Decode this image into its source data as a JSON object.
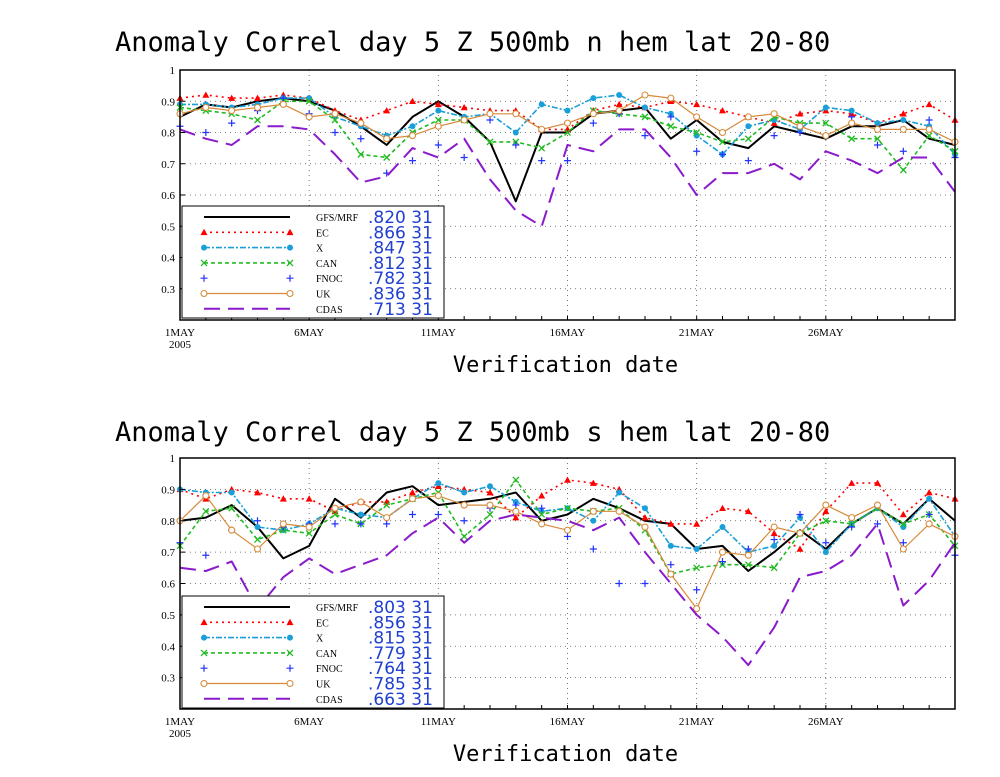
{
  "chart_data": [
    {
      "type": "line",
      "title": "Anomaly Correl   day 5   Z 500mb   n hem   lat 20-80",
      "xlabel": "Verification date",
      "year_label": "2005",
      "x_tick_labels": [
        "1MAY",
        "6MAY",
        "11MAY",
        "16MAY",
        "21MAY",
        "26MAY"
      ],
      "x_tick_days": [
        1,
        6,
        11,
        16,
        21,
        26
      ],
      "x": [
        1,
        2,
        3,
        4,
        5,
        6,
        7,
        8,
        9,
        10,
        11,
        12,
        13,
        14,
        15,
        16,
        17,
        18,
        19,
        20,
        21,
        22,
        23,
        24,
        25,
        26,
        27,
        28,
        29,
        30,
        31
      ],
      "xlim": [
        1,
        31
      ],
      "ylim": [
        0.2,
        1.0
      ],
      "y_ticks": [
        "1",
        "0.9",
        "0.8",
        "0.7",
        "0.6",
        "0.5",
        "0.4",
        "0.3"
      ],
      "y_tick_values": [
        1.0,
        0.9,
        0.8,
        0.7,
        0.6,
        0.5,
        0.4,
        0.3
      ],
      "grid": true,
      "legend_position": "bottom-left",
      "series": [
        {
          "name": "GFS/MRF",
          "stat": ".820  31",
          "color": "#000000",
          "dash": "",
          "width": 2,
          "marker": "none",
          "values": [
            0.85,
            0.89,
            0.88,
            0.9,
            0.91,
            0.9,
            0.87,
            0.82,
            0.76,
            0.85,
            0.9,
            0.85,
            0.77,
            0.58,
            0.8,
            0.8,
            0.86,
            0.87,
            0.88,
            0.78,
            0.84,
            0.77,
            0.75,
            0.82,
            0.8,
            0.78,
            0.82,
            0.82,
            0.84,
            0.78,
            0.76
          ]
        },
        {
          "name": "EC",
          "stat": ".866  31",
          "color": "#ff0000",
          "dash": "2,4",
          "width": 1.6,
          "marker": "triangle",
          "values": [
            0.91,
            0.92,
            0.91,
            0.91,
            0.92,
            0.91,
            0.87,
            0.84,
            0.87,
            0.9,
            0.89,
            0.88,
            0.87,
            0.87,
            0.81,
            0.81,
            0.87,
            0.89,
            0.88,
            0.9,
            0.89,
            0.87,
            0.85,
            0.83,
            0.86,
            0.87,
            0.86,
            0.83,
            0.86,
            0.89,
            0.84
          ]
        },
        {
          "name": "X",
          "stat": ".847  31",
          "color": "#1a9fd8",
          "dash": "6,2,2,2",
          "width": 1.6,
          "marker": "circle",
          "values": [
            0.89,
            0.89,
            0.88,
            0.89,
            0.91,
            0.91,
            0.85,
            0.82,
            0.79,
            0.82,
            0.87,
            0.85,
            0.86,
            0.8,
            0.89,
            0.87,
            0.91,
            0.92,
            0.88,
            0.86,
            0.79,
            0.73,
            0.82,
            0.84,
            0.81,
            0.88,
            0.87,
            0.83,
            0.84,
            0.82,
            0.73
          ]
        },
        {
          "name": "CAN",
          "stat": ".812  31",
          "color": "#22bb22",
          "dash": "4,3",
          "width": 1.6,
          "marker": "x",
          "values": [
            0.88,
            0.87,
            0.86,
            0.84,
            0.9,
            0.9,
            0.84,
            0.73,
            0.72,
            0.8,
            0.84,
            0.84,
            0.77,
            0.77,
            0.75,
            0.8,
            0.87,
            0.86,
            0.85,
            0.82,
            0.8,
            0.77,
            0.78,
            0.85,
            0.83,
            0.83,
            0.78,
            0.78,
            0.68,
            0.79,
            0.74
          ]
        },
        {
          "name": "FNOC",
          "stat": ".782  31",
          "color": "#2233ff",
          "dash": "",
          "width": 0,
          "marker": "plus",
          "values": [
            0.82,
            0.8,
            0.83,
            0.87,
            0.91,
            0.86,
            0.8,
            0.78,
            0.67,
            0.71,
            0.76,
            0.72,
            0.84,
            0.76,
            0.71,
            0.71,
            0.83,
            0.86,
            0.79,
            0.85,
            0.74,
            0.73,
            0.71,
            0.79,
            0.8,
            0.79,
            0.85,
            0.76,
            0.74,
            0.84,
            0.72
          ]
        },
        {
          "name": "UK",
          "stat": ".836  31",
          "color": "#d68a3a",
          "dash": "",
          "width": 1.2,
          "marker": "opencircle",
          "values": [
            0.86,
            0.88,
            0.87,
            0.88,
            0.89,
            0.85,
            0.86,
            0.83,
            0.78,
            0.79,
            0.82,
            0.84,
            0.86,
            0.86,
            0.81,
            0.83,
            0.86,
            0.87,
            0.92,
            0.91,
            0.85,
            0.8,
            0.85,
            0.86,
            0.82,
            0.79,
            0.83,
            0.81,
            0.81,
            0.81,
            0.77
          ]
        },
        {
          "name": "CDAS",
          "stat": ".713  31",
          "color": "#8a1acb",
          "dash": "16,8",
          "width": 2,
          "marker": "none",
          "values": [
            0.81,
            0.78,
            0.76,
            0.82,
            0.82,
            0.81,
            0.73,
            0.64,
            0.66,
            0.75,
            0.72,
            0.78,
            0.65,
            0.55,
            0.5,
            0.76,
            0.74,
            0.81,
            0.81,
            0.72,
            0.6,
            0.67,
            0.67,
            0.7,
            0.65,
            0.74,
            0.71,
            0.67,
            0.72,
            0.72,
            0.61
          ]
        }
      ]
    },
    {
      "type": "line",
      "title": "Anomaly Correl   day 5   Z 500mb   s hem   lat 20-80",
      "xlabel": "Verification date",
      "year_label": "2005",
      "x_tick_labels": [
        "1MAY",
        "6MAY",
        "11MAY",
        "16MAY",
        "21MAY",
        "26MAY"
      ],
      "x_tick_days": [
        1,
        6,
        11,
        16,
        21,
        26
      ],
      "x": [
        1,
        2,
        3,
        4,
        5,
        6,
        7,
        8,
        9,
        10,
        11,
        12,
        13,
        14,
        15,
        16,
        17,
        18,
        19,
        20,
        21,
        22,
        23,
        24,
        25,
        26,
        27,
        28,
        29,
        30,
        31
      ],
      "xlim": [
        1,
        31
      ],
      "ylim": [
        0.2,
        1.0
      ],
      "y_ticks": [
        "1",
        "0.9",
        "0.8",
        "0.7",
        "0.6",
        "0.5",
        "0.4",
        "0.3"
      ],
      "y_tick_values": [
        1.0,
        0.9,
        0.8,
        0.7,
        0.6,
        0.5,
        0.4,
        0.3
      ],
      "grid": true,
      "legend_position": "bottom-left",
      "series": [
        {
          "name": "GFS/MRF",
          "stat": ".803  31",
          "color": "#000000",
          "dash": "",
          "width": 2,
          "marker": "none",
          "values": [
            0.8,
            0.81,
            0.85,
            0.78,
            0.68,
            0.72,
            0.87,
            0.81,
            0.89,
            0.91,
            0.85,
            0.86,
            0.87,
            0.89,
            0.8,
            0.82,
            0.87,
            0.84,
            0.8,
            0.79,
            0.71,
            0.72,
            0.64,
            0.7,
            0.77,
            0.71,
            0.79,
            0.84,
            0.79,
            0.87,
            0.8
          ]
        },
        {
          "name": "EC",
          "stat": ".856  31",
          "color": "#ff0000",
          "dash": "2,4",
          "width": 1.6,
          "marker": "triangle",
          "values": [
            0.9,
            0.87,
            0.9,
            0.89,
            0.87,
            0.87,
            0.83,
            0.86,
            0.86,
            0.89,
            0.91,
            0.9,
            0.89,
            0.81,
            0.88,
            0.93,
            0.92,
            0.9,
            0.81,
            0.79,
            0.79,
            0.84,
            0.83,
            0.76,
            0.71,
            0.83,
            0.92,
            0.92,
            0.82,
            0.89,
            0.87
          ]
        },
        {
          "name": "X",
          "stat": ".815  31",
          "color": "#1a9fd8",
          "dash": "6,2,2,2",
          "width": 1.6,
          "marker": "circle",
          "values": [
            0.9,
            0.89,
            0.89,
            0.78,
            0.77,
            0.79,
            0.84,
            0.82,
            0.81,
            0.87,
            0.92,
            0.89,
            0.91,
            0.86,
            0.83,
            0.84,
            0.8,
            0.89,
            0.84,
            0.72,
            0.71,
            0.78,
            0.7,
            0.72,
            0.81,
            0.7,
            0.79,
            0.84,
            0.78,
            0.87,
            0.75
          ]
        },
        {
          "name": "CAN",
          "stat": ".779  31",
          "color": "#22bb22",
          "dash": "4,3",
          "width": 1.6,
          "marker": "x",
          "values": [
            0.72,
            0.83,
            0.84,
            0.74,
            0.77,
            0.76,
            0.82,
            0.79,
            0.85,
            0.87,
            0.89,
            0.75,
            0.82,
            0.93,
            0.82,
            0.84,
            0.83,
            0.84,
            0.77,
            0.63,
            0.65,
            0.66,
            0.66,
            0.65,
            0.76,
            0.8,
            0.79,
            0.84,
            0.79,
            0.82,
            0.72
          ]
        },
        {
          "name": "FNOC",
          "stat": ".764  31",
          "color": "#2233ff",
          "dash": "",
          "width": 0,
          "marker": "plus",
          "values": [
            0.73,
            0.69,
            0.77,
            0.8,
            0.78,
            0.79,
            0.79,
            0.79,
            0.79,
            0.82,
            0.82,
            0.8,
            0.84,
            0.85,
            0.84,
            0.75,
            0.71,
            0.6,
            0.6,
            0.66,
            0.58,
            0.67,
            0.71,
            0.74,
            0.82,
            0.73,
            0.78,
            0.79,
            0.73,
            0.82,
            0.69
          ]
        },
        {
          "name": "UK",
          "stat": ".785  31",
          "color": "#d68a3a",
          "dash": "",
          "width": 1.2,
          "marker": "opencircle",
          "values": [
            0.8,
            0.88,
            0.77,
            0.71,
            0.79,
            0.78,
            0.84,
            0.86,
            0.81,
            0.87,
            0.88,
            0.85,
            0.85,
            0.83,
            0.79,
            0.77,
            0.83,
            0.83,
            0.78,
            0.63,
            0.52,
            0.7,
            0.69,
            0.78,
            0.76,
            0.85,
            0.81,
            0.85,
            0.71,
            0.79,
            0.75
          ]
        },
        {
          "name": "CDAS",
          "stat": ".663  31",
          "color": "#8a1acb",
          "dash": "16,8",
          "width": 2,
          "marker": "none",
          "values": [
            0.65,
            0.64,
            0.67,
            0.52,
            0.62,
            0.68,
            0.63,
            0.66,
            0.69,
            0.76,
            0.81,
            0.73,
            0.8,
            0.82,
            0.81,
            0.8,
            0.77,
            0.81,
            0.7,
            0.6,
            0.5,
            0.43,
            0.34,
            0.46,
            0.62,
            0.64,
            0.69,
            0.79,
            0.53,
            0.61,
            0.73
          ]
        }
      ]
    }
  ]
}
